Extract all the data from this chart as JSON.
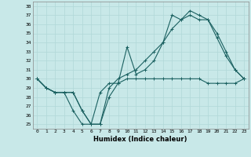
{
  "xlabel": "Humidex (Indice chaleur)",
  "bg_color": "#c8e8e8",
  "grid_color": "#b0d8d8",
  "line_color": "#1a6060",
  "xlim": [
    -0.5,
    23.5
  ],
  "ylim": [
    24.5,
    38.5
  ],
  "xticks": [
    0,
    1,
    2,
    3,
    4,
    5,
    6,
    7,
    8,
    9,
    10,
    11,
    12,
    13,
    14,
    15,
    16,
    17,
    18,
    19,
    20,
    21,
    22,
    23
  ],
  "yticks": [
    25,
    26,
    27,
    28,
    29,
    30,
    31,
    32,
    33,
    34,
    35,
    36,
    37,
    38
  ],
  "series1_x": [
    0,
    1,
    2,
    3,
    4,
    5,
    6,
    7,
    8,
    9,
    10,
    11,
    12,
    13,
    14,
    15,
    16,
    17,
    18,
    19,
    20,
    21,
    22,
    23
  ],
  "series1_y": [
    30,
    29,
    28.5,
    28.5,
    28.5,
    26.5,
    25,
    25,
    28,
    29.5,
    30,
    30,
    30,
    30,
    30,
    30,
    30,
    30,
    30,
    29.5,
    29.5,
    29.5,
    29.5,
    30
  ],
  "series2_x": [
    0,
    1,
    2,
    3,
    4,
    5,
    6,
    7,
    8,
    9,
    10,
    11,
    12,
    13,
    14,
    15,
    16,
    17,
    18,
    19,
    20,
    21,
    22,
    23
  ],
  "series2_y": [
    30,
    29,
    28.5,
    28.5,
    26.5,
    25,
    25,
    28.5,
    29.5,
    29.5,
    33.5,
    30.5,
    31,
    32,
    34,
    37,
    36.5,
    37.5,
    37,
    36.5,
    34.5,
    32.5,
    31,
    30
  ],
  "series3_x": [
    0,
    1,
    2,
    3,
    4,
    5,
    6,
    7,
    8,
    9,
    10,
    11,
    12,
    13,
    14,
    15,
    16,
    17,
    18,
    19,
    20,
    21,
    22,
    23
  ],
  "series3_y": [
    30,
    29,
    28.5,
    28.5,
    28.5,
    26.5,
    25,
    25,
    29,
    30,
    30.5,
    31,
    32,
    33,
    34,
    35.5,
    36.5,
    37,
    36.5,
    36.5,
    35,
    33,
    31,
    30
  ]
}
